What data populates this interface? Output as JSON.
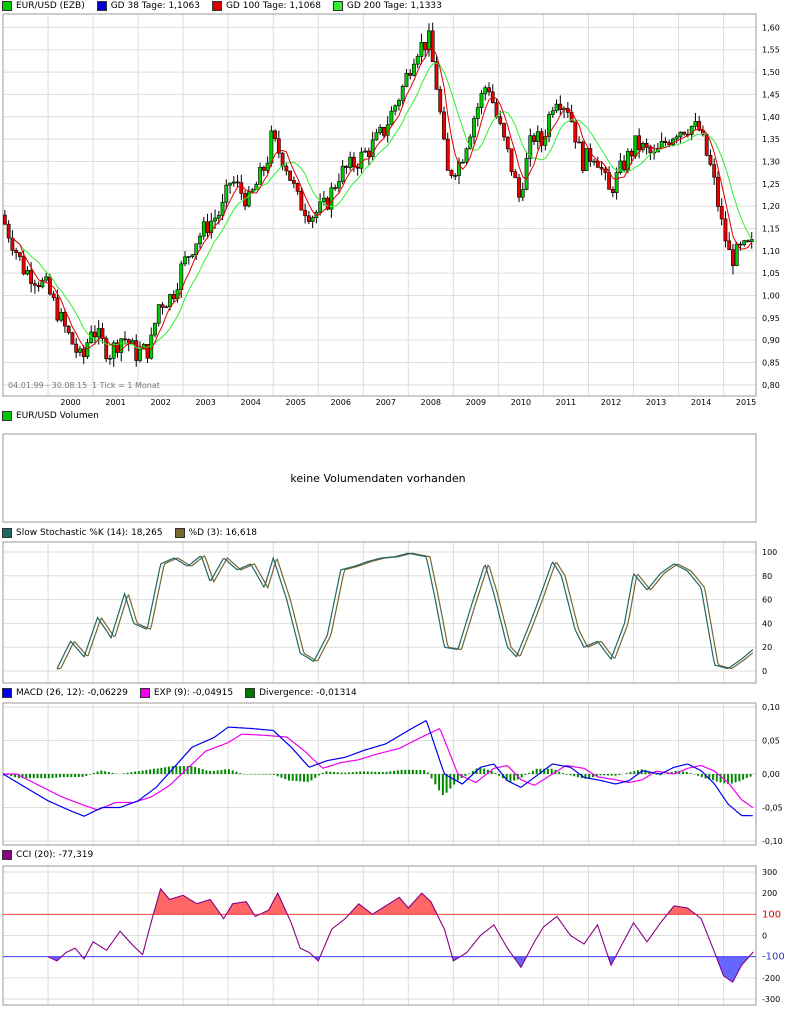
{
  "legends": {
    "price": [
      {
        "label": "EUR/USD (EZB)",
        "color": "#00cc00"
      },
      {
        "label": "GD 38 Tage: 1,1063",
        "color": "#0000cc"
      },
      {
        "label": "GD 100 Tage: 1,1068",
        "color": "#dd0000"
      },
      {
        "label": "GD 200 Tage: 1,1333",
        "color": "#33ee33"
      }
    ],
    "volume": [
      {
        "label": "EUR/USD Volumen",
        "color": "#00cc00"
      }
    ],
    "stoch": [
      {
        "label": "Slow Stochastic %K (14): 18,265",
        "color": "#226666"
      },
      {
        "label": "%D (3): 16,618",
        "color": "#776633"
      }
    ],
    "macd": [
      {
        "label": "MACD (26, 12): -0,06229",
        "color": "#0000ee"
      },
      {
        "label": "EXP (9): -0,04915",
        "color": "#ee00ee"
      },
      {
        "label": "Divergence: -0,01314",
        "color": "#007700"
      }
    ],
    "cci": [
      {
        "label": "CCI (20): -77,319",
        "color": "#880088"
      }
    ]
  },
  "volume_message": "keine Volumendaten vorhanden",
  "date_range": "04.01.99 - 30.08.15",
  "tick_info": "1 Tick = 1 Monat",
  "chart_data": [
    {
      "type": "candlestick",
      "name": "EUR/USD (EZB)",
      "x_labels": [
        "2000",
        "2001",
        "2002",
        "2003",
        "2004",
        "2005",
        "2006",
        "2007",
        "2008",
        "2009",
        "2010",
        "2011",
        "2012",
        "2013",
        "2014",
        "2015"
      ],
      "y_ticks": [
        "1,60",
        "1,55",
        "1,50",
        "1,45",
        "1,40",
        "1,35",
        "1,30",
        "1,25",
        "1,20",
        "1,15",
        "1,10",
        "1,05",
        "1,00",
        "0,95",
        "0,90",
        "0,85",
        "0,80"
      ],
      "ylim": [
        0.775,
        1.63
      ],
      "close_path": [
        [
          1999.0,
          1.18
        ],
        [
          1999.5,
          1.06
        ],
        [
          2000.0,
          1.02
        ],
        [
          2000.4,
          0.93
        ],
        [
          2000.8,
          0.85
        ],
        [
          2001.0,
          0.93
        ],
        [
          2001.4,
          0.87
        ],
        [
          2001.7,
          0.91
        ],
        [
          2002.0,
          0.87
        ],
        [
          2002.3,
          0.88
        ],
        [
          2002.5,
          0.98
        ],
        [
          2002.8,
          1.0
        ],
        [
          2003.0,
          1.06
        ],
        [
          2003.3,
          1.12
        ],
        [
          2003.6,
          1.16
        ],
        [
          2003.9,
          1.19
        ],
        [
          2004.1,
          1.26
        ],
        [
          2004.5,
          1.21
        ],
        [
          2004.9,
          1.3
        ],
        [
          2005.0,
          1.35
        ],
        [
          2005.3,
          1.3
        ],
        [
          2005.6,
          1.21
        ],
        [
          2005.9,
          1.18
        ],
        [
          2006.2,
          1.2
        ],
        [
          2006.5,
          1.27
        ],
        [
          2006.9,
          1.3
        ],
        [
          2007.2,
          1.33
        ],
        [
          2007.5,
          1.37
        ],
        [
          2007.9,
          1.46
        ],
        [
          2008.2,
          1.55
        ],
        [
          2008.5,
          1.57
        ],
        [
          2008.7,
          1.45
        ],
        [
          2008.9,
          1.27
        ],
        [
          2009.2,
          1.3
        ],
        [
          2009.5,
          1.4
        ],
        [
          2009.8,
          1.48
        ],
        [
          2010.0,
          1.4
        ],
        [
          2010.3,
          1.3
        ],
        [
          2010.5,
          1.22
        ],
        [
          2010.8,
          1.36
        ],
        [
          2011.0,
          1.34
        ],
        [
          2011.3,
          1.45
        ],
        [
          2011.6,
          1.42
        ],
        [
          2011.9,
          1.3
        ],
        [
          2012.2,
          1.32
        ],
        [
          2012.5,
          1.23
        ],
        [
          2012.8,
          1.29
        ],
        [
          2013.1,
          1.34
        ],
        [
          2013.5,
          1.31
        ],
        [
          2013.8,
          1.35
        ],
        [
          2014.0,
          1.37
        ],
        [
          2014.3,
          1.38
        ],
        [
          2014.5,
          1.37
        ],
        [
          2014.8,
          1.27
        ],
        [
          2015.0,
          1.16
        ],
        [
          2015.2,
          1.08
        ],
        [
          2015.4,
          1.1
        ],
        [
          2015.66,
          1.11
        ]
      ],
      "moving_averages": [
        {
          "name": "GD 38 Tage",
          "value": 1.1063
        },
        {
          "name": "GD 100 Tage",
          "value": 1.1068
        },
        {
          "name": "GD 200 Tage",
          "value": 1.1333
        }
      ]
    },
    {
      "type": "line",
      "name": "Slow Stochastic",
      "y_ticks": [
        "100",
        "80",
        "60",
        "40",
        "20",
        "0"
      ],
      "ylim": [
        0,
        100
      ],
      "series": [
        {
          "name": "%K",
          "values": [
            [
              2000.2,
              2
            ],
            [
              2000.5,
              25
            ],
            [
              2000.8,
              12
            ],
            [
              2001.1,
              45
            ],
            [
              2001.4,
              28
            ],
            [
              2001.7,
              65
            ],
            [
              2001.9,
              40
            ],
            [
              2002.2,
              35
            ],
            [
              2002.5,
              90
            ],
            [
              2002.8,
              95
            ],
            [
              2003.1,
              88
            ],
            [
              2003.4,
              97
            ],
            [
              2003.6,
              75
            ],
            [
              2003.9,
              95
            ],
            [
              2004.2,
              85
            ],
            [
              2004.5,
              90
            ],
            [
              2004.8,
              70
            ],
            [
              2005.0,
              95
            ],
            [
              2005.3,
              60
            ],
            [
              2005.6,
              15
            ],
            [
              2005.9,
              8
            ],
            [
              2006.2,
              30
            ],
            [
              2006.5,
              85
            ],
            [
              2006.8,
              88
            ],
            [
              2007.1,
              92
            ],
            [
              2007.4,
              95
            ],
            [
              2007.7,
              96
            ],
            [
              2008.0,
              99
            ],
            [
              2008.4,
              96
            ],
            [
              2008.6,
              60
            ],
            [
              2008.8,
              20
            ],
            [
              2009.1,
              18
            ],
            [
              2009.4,
              55
            ],
            [
              2009.7,
              90
            ],
            [
              2009.9,
              65
            ],
            [
              2010.2,
              20
            ],
            [
              2010.4,
              12
            ],
            [
              2010.7,
              40
            ],
            [
              2010.9,
              60
            ],
            [
              2011.2,
              92
            ],
            [
              2011.4,
              80
            ],
            [
              2011.7,
              35
            ],
            [
              2011.9,
              20
            ],
            [
              2012.2,
              25
            ],
            [
              2012.5,
              10
            ],
            [
              2012.8,
              40
            ],
            [
              2013.0,
              82
            ],
            [
              2013.3,
              68
            ],
            [
              2013.6,
              82
            ],
            [
              2013.9,
              90
            ],
            [
              2014.2,
              84
            ],
            [
              2014.5,
              70
            ],
            [
              2014.8,
              5
            ],
            [
              2015.1,
              2
            ],
            [
              2015.4,
              10
            ],
            [
              2015.66,
              18.265
            ]
          ]
        },
        {
          "name": "%D",
          "values": [
            [
              2015.66,
              16.618
            ]
          ]
        }
      ]
    },
    {
      "type": "line",
      "name": "MACD",
      "y_ticks": [
        "0,10",
        "0,05",
        "0,00",
        "-0,05",
        "-0,10"
      ],
      "ylim": [
        -0.1,
        0.1
      ],
      "series": [
        {
          "name": "MACD",
          "values": [
            [
              1999.0,
              0.0
            ],
            [
              1999.5,
              -0.02
            ],
            [
              2000.0,
              -0.04
            ],
            [
              2000.5,
              -0.055
            ],
            [
              2000.8,
              -0.063
            ],
            [
              2001.2,
              -0.05
            ],
            [
              2001.6,
              -0.05
            ],
            [
              2002.0,
              -0.04
            ],
            [
              2002.4,
              -0.02
            ],
            [
              2002.8,
              0.01
            ],
            [
              2003.2,
              0.04
            ],
            [
              2003.7,
              0.055
            ],
            [
              2004.0,
              0.07
            ],
            [
              2004.5,
              0.068
            ],
            [
              2005.0,
              0.065
            ],
            [
              2005.4,
              0.04
            ],
            [
              2005.8,
              0.01
            ],
            [
              2006.2,
              0.02
            ],
            [
              2006.6,
              0.025
            ],
            [
              2007.0,
              0.035
            ],
            [
              2007.5,
              0.045
            ],
            [
              2008.0,
              0.065
            ],
            [
              2008.4,
              0.08
            ],
            [
              2008.8,
              0.0
            ],
            [
              2009.2,
              -0.015
            ],
            [
              2009.6,
              0.01
            ],
            [
              2009.9,
              0.015
            ],
            [
              2010.2,
              -0.01
            ],
            [
              2010.5,
              -0.02
            ],
            [
              2010.8,
              -0.005
            ],
            [
              2011.2,
              0.015
            ],
            [
              2011.6,
              0.01
            ],
            [
              2011.9,
              -0.005
            ],
            [
              2012.3,
              -0.01
            ],
            [
              2012.6,
              -0.015
            ],
            [
              2012.9,
              -0.01
            ],
            [
              2013.2,
              0.005
            ],
            [
              2013.6,
              0.0
            ],
            [
              2013.9,
              0.01
            ],
            [
              2014.2,
              0.015
            ],
            [
              2014.5,
              0.005
            ],
            [
              2014.8,
              -0.015
            ],
            [
              2015.1,
              -0.045
            ],
            [
              2015.4,
              -0.062
            ],
            [
              2015.66,
              -0.06229
            ]
          ]
        },
        {
          "name": "EXP",
          "values": [
            [
              2015.66,
              -0.04915
            ]
          ]
        },
        {
          "name": "Divergence",
          "values": [
            [
              2015.66,
              -0.01314
            ]
          ]
        }
      ]
    },
    {
      "type": "line",
      "name": "CCI",
      "y_ticks": [
        "300",
        "200",
        "100",
        "0",
        "-100",
        "-200",
        "-300"
      ],
      "ylim": [
        -300,
        300
      ],
      "reference_lines": [
        100,
        -100
      ],
      "series": [
        {
          "name": "CCI",
          "values": [
            [
              2000.0,
              -100
            ],
            [
              2000.2,
              -120
            ],
            [
              2000.4,
              -80
            ],
            [
              2000.6,
              -60
            ],
            [
              2000.8,
              -110
            ],
            [
              2001.0,
              -30
            ],
            [
              2001.3,
              -70
            ],
            [
              2001.6,
              20
            ],
            [
              2001.9,
              -50
            ],
            [
              2002.1,
              -90
            ],
            [
              2002.3,
              70
            ],
            [
              2002.5,
              220
            ],
            [
              2002.7,
              170
            ],
            [
              2003.0,
              190
            ],
            [
              2003.3,
              150
            ],
            [
              2003.6,
              170
            ],
            [
              2003.9,
              80
            ],
            [
              2004.1,
              150
            ],
            [
              2004.4,
              160
            ],
            [
              2004.6,
              90
            ],
            [
              2004.9,
              120
            ],
            [
              2005.1,
              200
            ],
            [
              2005.4,
              60
            ],
            [
              2005.6,
              -60
            ],
            [
              2005.8,
              -80
            ],
            [
              2006.0,
              -120
            ],
            [
              2006.3,
              30
            ],
            [
              2006.6,
              80
            ],
            [
              2006.9,
              150
            ],
            [
              2007.2,
              100
            ],
            [
              2007.5,
              140
            ],
            [
              2007.8,
              180
            ],
            [
              2008.0,
              130
            ],
            [
              2008.3,
              200
            ],
            [
              2008.5,
              160
            ],
            [
              2008.8,
              30
            ],
            [
              2009.0,
              -120
            ],
            [
              2009.3,
              -80
            ],
            [
              2009.6,
              0
            ],
            [
              2009.9,
              50
            ],
            [
              2010.2,
              -60
            ],
            [
              2010.5,
              -150
            ],
            [
              2010.8,
              -30
            ],
            [
              2011.0,
              40
            ],
            [
              2011.3,
              90
            ],
            [
              2011.6,
              0
            ],
            [
              2011.9,
              -40
            ],
            [
              2012.2,
              50
            ],
            [
              2012.5,
              -140
            ],
            [
              2012.8,
              -20
            ],
            [
              2013.0,
              60
            ],
            [
              2013.3,
              -30
            ],
            [
              2013.6,
              60
            ],
            [
              2013.9,
              140
            ],
            [
              2014.2,
              130
            ],
            [
              2014.5,
              80
            ],
            [
              2014.8,
              -80
            ],
            [
              2015.0,
              -190
            ],
            [
              2015.2,
              -220
            ],
            [
              2015.4,
              -140
            ],
            [
              2015.66,
              -77.319
            ]
          ]
        }
      ]
    }
  ]
}
